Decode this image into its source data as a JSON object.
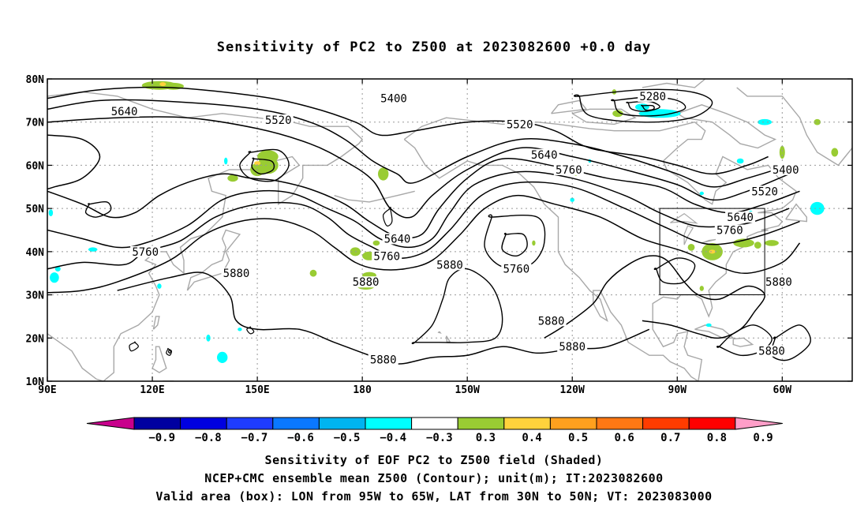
{
  "title": "Sensitivity of PC2 to Z500 at 2023082600 +0.0 day",
  "map": {
    "lat_labels": [
      "80N",
      "70N",
      "60N",
      "50N",
      "40N",
      "30N",
      "20N",
      "10N"
    ],
    "lon_labels": [
      "90E",
      "120E",
      "150E",
      "180",
      "150W",
      "120W",
      "90W",
      "60W"
    ],
    "contour_labels": [
      {
        "text": "5280",
        "lon": -97,
        "lat": 76
      },
      {
        "text": "5400",
        "lon": -171,
        "lat": 75.5
      },
      {
        "text": "5640",
        "lon": 112,
        "lat": 72.5
      },
      {
        "text": "5520",
        "lon": 156,
        "lat": 70.5
      },
      {
        "text": "5520",
        "lon": -135,
        "lat": 69.5
      },
      {
        "text": "5640",
        "lon": -128,
        "lat": 62.5
      },
      {
        "text": "5760",
        "lon": -121,
        "lat": 59
      },
      {
        "text": "5400",
        "lon": -59,
        "lat": 59
      },
      {
        "text": "5520",
        "lon": -65,
        "lat": 54
      },
      {
        "text": "5640",
        "lon": -72,
        "lat": 48
      },
      {
        "text": "5760",
        "lon": -75,
        "lat": 45
      },
      {
        "text": "5640",
        "lon": -170,
        "lat": 43
      },
      {
        "text": "5760",
        "lon": -173,
        "lat": 39
      },
      {
        "text": "5760",
        "lon": 118,
        "lat": 40
      },
      {
        "text": "5880",
        "lon": -155,
        "lat": 37
      },
      {
        "text": "5760",
        "lon": -136,
        "lat": 36
      },
      {
        "text": "5880",
        "lon": -179,
        "lat": 33
      },
      {
        "text": "5880",
        "lon": 144,
        "lat": 35
      },
      {
        "text": "5880",
        "lon": -61,
        "lat": 33
      },
      {
        "text": "5880",
        "lon": -126,
        "lat": 24
      },
      {
        "text": "5880",
        "lon": -120,
        "lat": 18
      },
      {
        "text": "5880",
        "lon": -174,
        "lat": 15
      },
      {
        "text": "5880",
        "lon": -63,
        "lat": 17
      }
    ],
    "valid_box": {
      "lon_min": -95,
      "lon_max": -65,
      "lat_min": 30,
      "lat_max": 50
    }
  },
  "colorbar": {
    "labels": [
      "−0.9",
      "−0.8",
      "−0.7",
      "−0.6",
      "−0.5",
      "−0.4",
      "−0.3",
      "0.3",
      "0.4",
      "0.5",
      "0.6",
      "0.7",
      "0.8",
      "0.9"
    ],
    "colors": [
      "#0000a0",
      "#0000e0",
      "#1e3cff",
      "#0a78ff",
      "#00b4f0",
      "#00ffff",
      "#ffffff",
      "#99cc33",
      "#ffd23c",
      "#ffa01e",
      "#ff7814",
      "#ff3c00",
      "#ff0000"
    ],
    "left_arrow_color": "#c8008c",
    "right_arrow_color": "#ff9ec8"
  },
  "footer": {
    "line1": "Sensitivity of EOF PC2 to Z500 field (Shaded)",
    "line2": "NCEP+CMC ensemble mean Z500 (Contour); unit(m); IT:2023082600",
    "line3": "Valid area (box): LON from 95W to 65W, LAT from 30N to 50N; VT: 2023083000"
  },
  "colors": {
    "land": "#a8a8a8",
    "contour": "#000000",
    "grid": "#999999",
    "sens_pos": "#99cc33",
    "sens_neg": "#00ffff"
  }
}
